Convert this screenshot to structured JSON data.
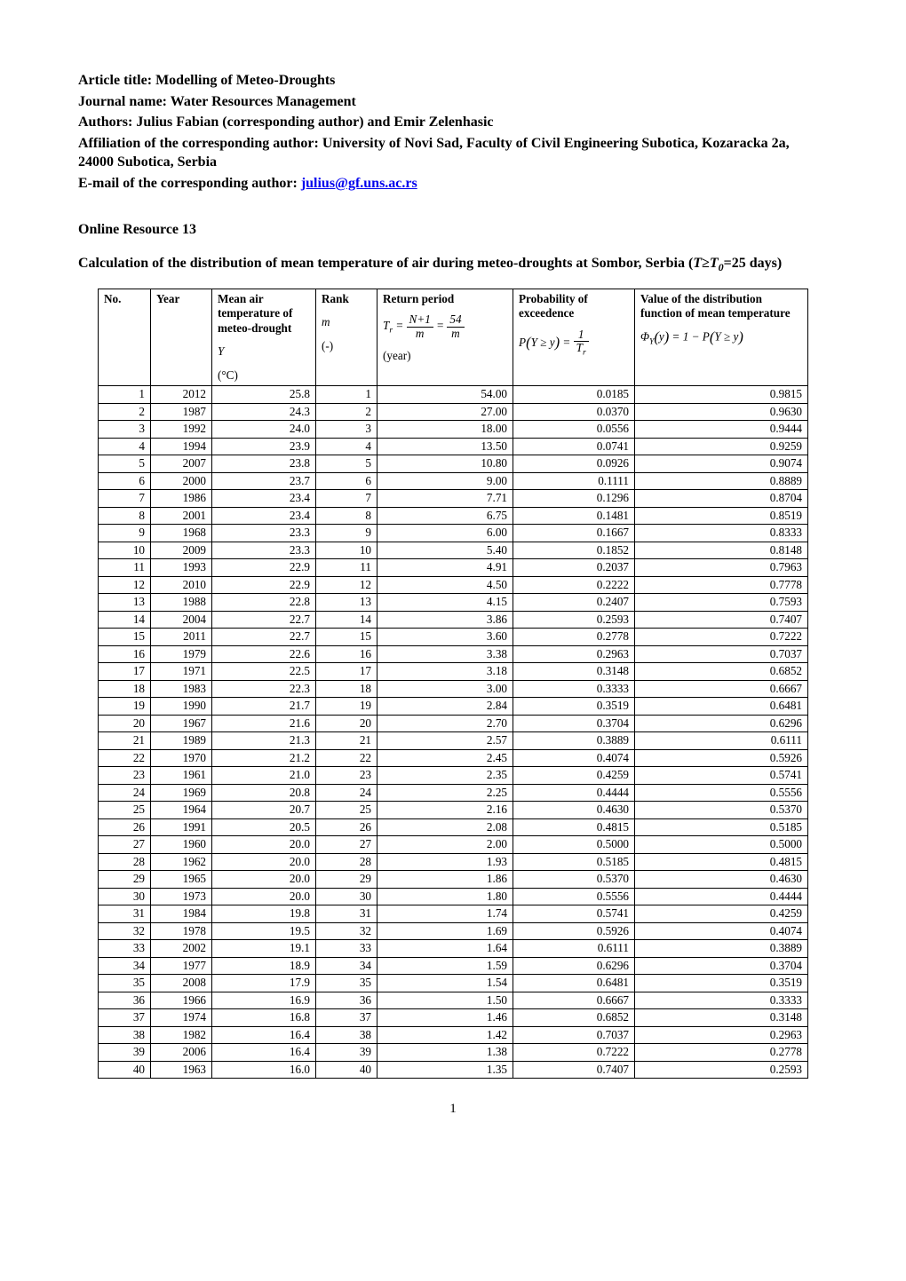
{
  "header": {
    "article_title_label": "Article title: ",
    "article_title": "Modelling of Meteo-Droughts",
    "journal_label": "Journal name: ",
    "journal": "Water Resources Management",
    "authors_label": "Authors: ",
    "authors": "Julius Fabian (corresponding author) and Emir Zelenhasic",
    "affiliation_label": "Affiliation of the corresponding author: ",
    "affiliation": "University of Novi Sad, Faculty of Civil Engineering Subotica, Kozaracka 2a, 24000 Subotica, Serbia",
    "email_label": "E-mail of the corresponding author: ",
    "email": "julius@gf.uns.ac.rs"
  },
  "resource_title": "Online Resource 13",
  "caption_pre": "Calculation of the distribution of mean temperature of air during meteo-droughts at Sombor, Serbia (",
  "caption_mid_T": "T",
  "caption_mid_ge": "≥",
  "caption_mid_T0": "T",
  "caption_mid_0": "0",
  "caption_mid_eq": "=25 days)",
  "table": {
    "columns": {
      "no": {
        "title": "No."
      },
      "year": {
        "title": "Year"
      },
      "temp": {
        "title": "Mean air temperature of meteo-drought",
        "symbol": "Y",
        "unit": "(°C)"
      },
      "rank": {
        "title": "Rank",
        "symbol": "m",
        "unit": "(-)"
      },
      "ret": {
        "title": "Return period",
        "unit": "(year)",
        "formula_lhs": "T",
        "formula_sub": "r",
        "formula_eq": " = ",
        "frac1_num": "N+1",
        "frac1_den": "m",
        "formula_eq2": " = ",
        "frac2_num": "54",
        "frac2_den": "m"
      },
      "prob": {
        "title": "Probability of exceedence",
        "formula_lhs": "P",
        "formula_arg1": "Y",
        "formula_ge": " ≥ ",
        "formula_arg2": "y",
        "formula_eq": " = ",
        "frac_num": "1",
        "frac_den_sym": "T",
        "frac_den_sub": "r"
      },
      "dist": {
        "title": "Value of the distribution function of mean temperature",
        "formula_phi": "Φ",
        "formula_phi_sub": "Y",
        "formula_arg": "y",
        "formula_eq": " = 1 − ",
        "formula_P": "P",
        "formula_parg1": "Y",
        "formula_ge": " ≥ ",
        "formula_parg2": "y"
      }
    },
    "rows": [
      [
        1,
        2012,
        "25.8",
        1,
        "54.00",
        "0.0185",
        "0.9815"
      ],
      [
        2,
        1987,
        "24.3",
        2,
        "27.00",
        "0.0370",
        "0.9630"
      ],
      [
        3,
        1992,
        "24.0",
        3,
        "18.00",
        "0.0556",
        "0.9444"
      ],
      [
        4,
        1994,
        "23.9",
        4,
        "13.50",
        "0.0741",
        "0.9259"
      ],
      [
        5,
        2007,
        "23.8",
        5,
        "10.80",
        "0.0926",
        "0.9074"
      ],
      [
        6,
        2000,
        "23.7",
        6,
        "9.00",
        "0.1111",
        "0.8889"
      ],
      [
        7,
        1986,
        "23.4",
        7,
        "7.71",
        "0.1296",
        "0.8704"
      ],
      [
        8,
        2001,
        "23.4",
        8,
        "6.75",
        "0.1481",
        "0.8519"
      ],
      [
        9,
        1968,
        "23.3",
        9,
        "6.00",
        "0.1667",
        "0.8333"
      ],
      [
        10,
        2009,
        "23.3",
        10,
        "5.40",
        "0.1852",
        "0.8148"
      ],
      [
        11,
        1993,
        "22.9",
        11,
        "4.91",
        "0.2037",
        "0.7963"
      ],
      [
        12,
        2010,
        "22.9",
        12,
        "4.50",
        "0.2222",
        "0.7778"
      ],
      [
        13,
        1988,
        "22.8",
        13,
        "4.15",
        "0.2407",
        "0.7593"
      ],
      [
        14,
        2004,
        "22.7",
        14,
        "3.86",
        "0.2593",
        "0.7407"
      ],
      [
        15,
        2011,
        "22.7",
        15,
        "3.60",
        "0.2778",
        "0.7222"
      ],
      [
        16,
        1979,
        "22.6",
        16,
        "3.38",
        "0.2963",
        "0.7037"
      ],
      [
        17,
        1971,
        "22.5",
        17,
        "3.18",
        "0.3148",
        "0.6852"
      ],
      [
        18,
        1983,
        "22.3",
        18,
        "3.00",
        "0.3333",
        "0.6667"
      ],
      [
        19,
        1990,
        "21.7",
        19,
        "2.84",
        "0.3519",
        "0.6481"
      ],
      [
        20,
        1967,
        "21.6",
        20,
        "2.70",
        "0.3704",
        "0.6296"
      ],
      [
        21,
        1989,
        "21.3",
        21,
        "2.57",
        "0.3889",
        "0.6111"
      ],
      [
        22,
        1970,
        "21.2",
        22,
        "2.45",
        "0.4074",
        "0.5926"
      ],
      [
        23,
        1961,
        "21.0",
        23,
        "2.35",
        "0.4259",
        "0.5741"
      ],
      [
        24,
        1969,
        "20.8",
        24,
        "2.25",
        "0.4444",
        "0.5556"
      ],
      [
        25,
        1964,
        "20.7",
        25,
        "2.16",
        "0.4630",
        "0.5370"
      ],
      [
        26,
        1991,
        "20.5",
        26,
        "2.08",
        "0.4815",
        "0.5185"
      ],
      [
        27,
        1960,
        "20.0",
        27,
        "2.00",
        "0.5000",
        "0.5000"
      ],
      [
        28,
        1962,
        "20.0",
        28,
        "1.93",
        "0.5185",
        "0.4815"
      ],
      [
        29,
        1965,
        "20.0",
        29,
        "1.86",
        "0.5370",
        "0.4630"
      ],
      [
        30,
        1973,
        "20.0",
        30,
        "1.80",
        "0.5556",
        "0.4444"
      ],
      [
        31,
        1984,
        "19.8",
        31,
        "1.74",
        "0.5741",
        "0.4259"
      ],
      [
        32,
        1978,
        "19.5",
        32,
        "1.69",
        "0.5926",
        "0.4074"
      ],
      [
        33,
        2002,
        "19.1",
        33,
        "1.64",
        "0.6111",
        "0.3889"
      ],
      [
        34,
        1977,
        "18.9",
        34,
        "1.59",
        "0.6296",
        "0.3704"
      ],
      [
        35,
        2008,
        "17.9",
        35,
        "1.54",
        "0.6481",
        "0.3519"
      ],
      [
        36,
        1966,
        "16.9",
        36,
        "1.50",
        "0.6667",
        "0.3333"
      ],
      [
        37,
        1974,
        "16.8",
        37,
        "1.46",
        "0.6852",
        "0.3148"
      ],
      [
        38,
        1982,
        "16.4",
        38,
        "1.42",
        "0.7037",
        "0.2963"
      ],
      [
        39,
        2006,
        "16.4",
        39,
        "1.38",
        "0.7222",
        "0.2778"
      ],
      [
        40,
        1963,
        "16.0",
        40,
        "1.35",
        "0.7407",
        "0.2593"
      ]
    ]
  },
  "page_number": "1"
}
